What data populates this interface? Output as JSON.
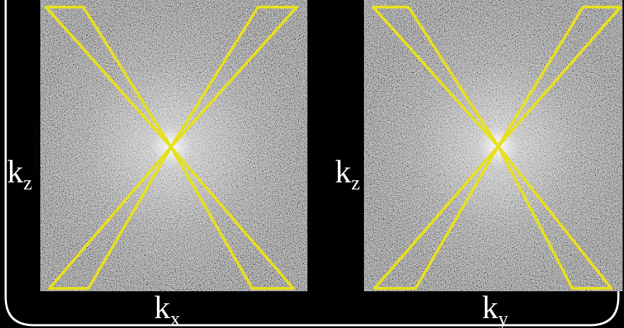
{
  "panels": [
    {
      "y_axis": {
        "label": "k",
        "subscript": "z"
      },
      "x_axis": {
        "label": "k",
        "subscript": "x"
      }
    },
    {
      "y_axis": {
        "label": "k",
        "subscript": "z"
      },
      "x_axis": {
        "label": "k",
        "subscript": "y"
      }
    }
  ]
}
